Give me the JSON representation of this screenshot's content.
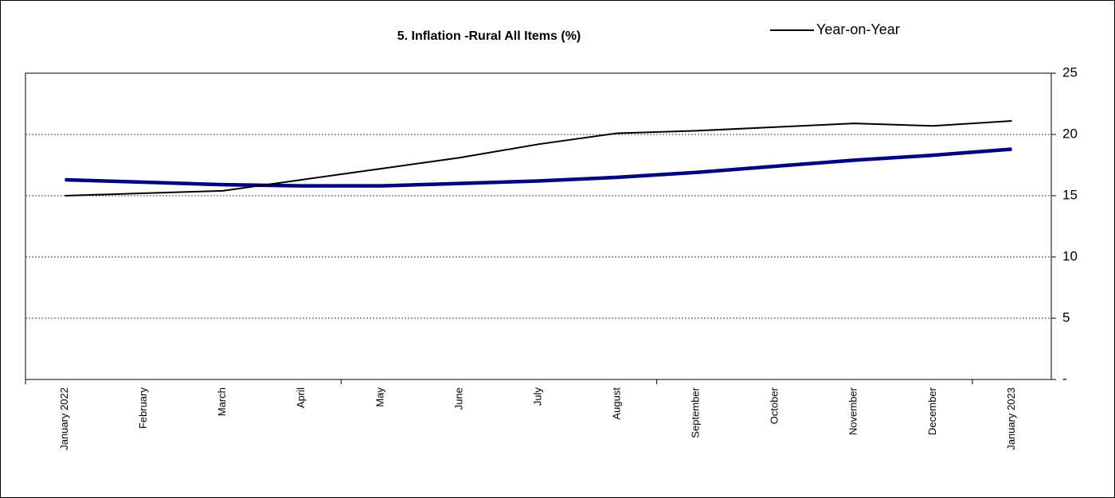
{
  "chart_data": {
    "type": "line",
    "title": "5. Inflation -Rural All Items (%)",
    "categories": [
      "January 2022",
      "February",
      "March",
      "April",
      "May",
      "June",
      "July",
      "August",
      "September",
      "October",
      "November",
      "December",
      "January 2023"
    ],
    "series": [
      {
        "color": "#000080",
        "values": [
          16.3,
          16.1,
          15.9,
          15.8,
          15.8,
          16.0,
          16.2,
          16.5,
          16.9,
          17.4,
          17.9,
          18.3,
          18.8
        ]
      },
      {
        "name": "Year-on-Year",
        "color": "#000000",
        "values": [
          15.0,
          15.2,
          15.4,
          16.3,
          17.2,
          18.1,
          19.2,
          20.1,
          20.3,
          20.6,
          20.9,
          20.7,
          21.1
        ]
      }
    ],
    "ylim": [
      0,
      25
    ],
    "yticks": [
      {
        "value": 0,
        "label": "-"
      },
      5,
      10,
      15,
      20,
      25
    ],
    "grid": true,
    "legend": "top-right"
  }
}
